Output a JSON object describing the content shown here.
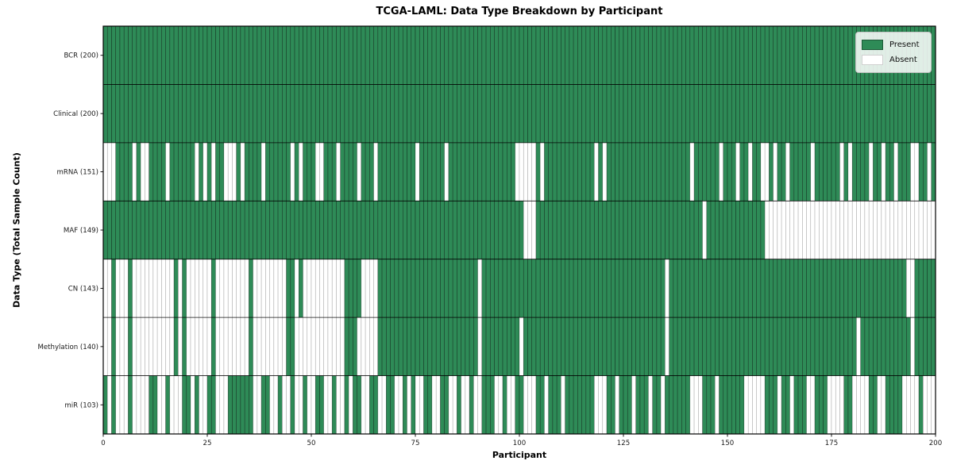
{
  "figure": {
    "title": "TCGA-LAML: Data Type Breakdown by Participant",
    "xlabel": "Participant",
    "ylabel": "Data Type (Total Sample Count)"
  },
  "legend": {
    "items": [
      {
        "label": "Present",
        "color": "#2e8b57"
      },
      {
        "label": "Absent",
        "color": "#ffffff"
      }
    ]
  },
  "chart_data": {
    "type": "heatmap",
    "title": "TCGA-LAML: Data Type Breakdown by Participant",
    "xlabel": "Participant",
    "ylabel": "Data Type (Total Sample Count)",
    "x_range": [
      0,
      200
    ],
    "x_ticks": [
      0,
      25,
      50,
      75,
      100,
      125,
      150,
      175,
      200
    ],
    "n_participants": 200,
    "grid": false,
    "legend_position": "upper right",
    "value_encoding": {
      "1": "Present",
      "0": "Absent"
    },
    "colors": {
      "present": "#2e8b57",
      "absent": "#ffffff",
      "cell_edge": "#000000",
      "row_divider": "#000000",
      "frame": "#000000"
    },
    "rows": [
      {
        "label": "BCR (200)",
        "total": 200,
        "pattern": "11111111111111111111111111111111111111111111111111111111111111111111111111111111111111111111111111111111111111111111111111111111111111111111111111111111111111111111111111111111111111111111111111111111"
      },
      {
        "label": "Clinical (200)",
        "total": 200,
        "pattern": "11111111111111111111111111111111111111111111111111111111111111111111111111111111111111111111111111111111111111111111111111111111111111111111111111111111111111111111111111111111111111111111111111111111"
      },
      {
        "label": "mRNA (151)",
        "total": 151,
        "pattern": "000111101001111011111101010110001011110111111010111001110111101110111111111011111101111111111111111000001011111111111101011111111111111111111011111101110110110010110111110111111010111101101101110011011"
      },
      {
        "label": "MAF (149)",
        "total": 149,
        "pattern": "11111111111111111111111111111111111111111111111111111111111111111111111111111111111111111111111111111000111111111111111111111111111111111111111101111111111111100000000000000000000000000000000000000000"
      },
      {
        "label": "CN (143)",
        "total": 143,
        "pattern": "00100010000000000101000000100000000100000000110100000000001111000011111111111111111111111101111111111111111111111111111111111111111111101111111111111111111111111111111111111111111111111111111110011111111"
      },
      {
        "label": "Methylation (140)",
        "total": 140,
        "pattern": "00100010000000000101000000100000000100000000110000000000001110000011111111111111111111111101111111110111111111111111111111111111111111101111111111111111111111111111111111111111111110111111111111 0111111111"
      },
      {
        "label": "miR (103)",
        "total": 103,
        "pattern": "10100010000110010001101001100011111100110010010010011001001011001100110010100110011001001001110010011000110111011111110001101110111011011111100011101111110000011101101110011100001100001100111100001000"
      }
    ]
  }
}
